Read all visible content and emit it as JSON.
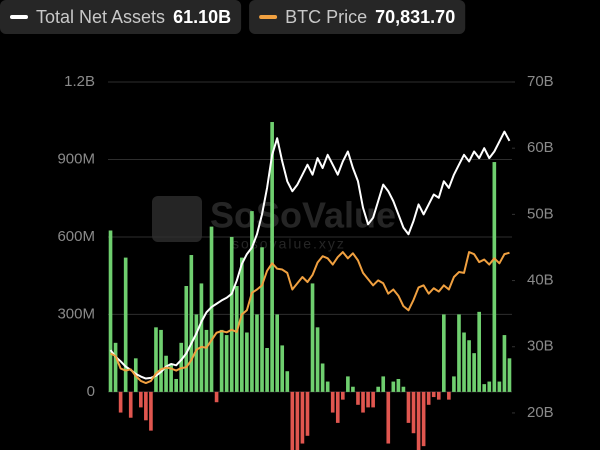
{
  "chart_data": {
    "type": "bar-line",
    "watermark": "SoSoValue",
    "watermark_sub": "sosovalue.xyz",
    "ylim": [
      -225,
      1200
    ],
    "yticks": [
      {
        "value": 1200,
        "label": "1.2B"
      },
      {
        "value": 900,
        "label": "900M"
      },
      {
        "value": 600,
        "label": "600M"
      },
      {
        "value": 300,
        "label": "300M"
      },
      0
    ],
    "y2lim": [
      14.4,
      70
    ],
    "y2ticks": [
      {
        "value": 70,
        "label": "70B"
      },
      {
        "value": 60,
        "label": "60B"
      },
      {
        "value": 50,
        "label": "50B"
      },
      {
        "value": 40,
        "label": "40B"
      },
      {
        "value": 30,
        "label": "30B"
      },
      {
        "value": 20,
        "label": "20B"
      }
    ],
    "y3lim": [
      23400,
      111900
    ],
    "grid": true,
    "series": [
      {
        "type": "bar",
        "color": "#6fcf6f",
        "negative_color": "#e0564f",
        "values": [
          625,
          190,
          -80,
          520,
          -100,
          130,
          -60,
          -110,
          -150,
          250,
          240,
          140,
          110,
          50,
          190,
          410,
          530,
          300,
          420,
          240,
          640,
          -40,
          240,
          220,
          600,
          410,
          520,
          230,
          700,
          300,
          560,
          170,
          1045,
          300,
          180,
          80,
          -300,
          -250,
          -200,
          -170,
          420,
          250,
          110,
          40,
          -80,
          -120,
          -30,
          60,
          20,
          -50,
          -80,
          -60,
          -60,
          20,
          60,
          -200,
          40,
          50,
          20,
          -120,
          -160,
          -250,
          -210,
          -50,
          -20,
          -30,
          300,
          -30,
          60,
          300,
          230,
          200,
          150,
          310,
          30,
          40,
          890,
          40,
          220,
          130
        ]
      },
      {
        "type": "line",
        "name": "Total Net Assets",
        "legend_value": "61.10B",
        "color": "#ffffff",
        "axis": "y2",
        "values": [
          29.5,
          28.5,
          27.8,
          27,
          26.5,
          25.9,
          25.5,
          25.2,
          25.3,
          25.6,
          26.2,
          27,
          27.4,
          27.2,
          28,
          29,
          30.5,
          32,
          33.8,
          35.2,
          36,
          36.5,
          37,
          37.4,
          38,
          40,
          42.5,
          44,
          45,
          47,
          50,
          54,
          59,
          61.5,
          58,
          55,
          53.5,
          54.5,
          56,
          57.5,
          56,
          58.5,
          57,
          59,
          57.5,
          56,
          58,
          59.5,
          57,
          55,
          51,
          48.5,
          49.5,
          52,
          54.5,
          53.5,
          52,
          50,
          48,
          47,
          49,
          51.5,
          50,
          51.5,
          53,
          52.5,
          55,
          54,
          56,
          57.5,
          59,
          58,
          59.5,
          58.5,
          60,
          58.5,
          59.5,
          61,
          62.5,
          61.1
        ]
      },
      {
        "type": "line",
        "name": "BTC Price",
        "legend_value": "70,831.70",
        "color": "#f0a040",
        "axis": "y3",
        "values": [
          46600,
          46000,
          43000,
          42500,
          42800,
          41200,
          40000,
          39500,
          40000,
          41800,
          42800,
          43200,
          43000,
          42500,
          43100,
          43300,
          45000,
          47500,
          48200,
          48000,
          49800,
          51600,
          52000,
          51700,
          52300,
          51800,
          56000,
          57000,
          61200,
          62000,
          63000,
          66500,
          68300,
          67000,
          66800,
          66000,
          62000,
          63500,
          65000,
          63800,
          65500,
          68500,
          70000,
          69500,
          68000,
          69800,
          71000,
          69500,
          70700,
          69000,
          66000,
          64500,
          63000,
          64200,
          63500,
          61000,
          62000,
          60500,
          58000,
          57000,
          59500,
          62500,
          63000,
          61000,
          62300,
          61500,
          63000,
          62000,
          65000,
          66200,
          66000,
          71000,
          70500,
          68600,
          69200,
          68000,
          69500,
          68300,
          70500,
          70831.7
        ]
      }
    ]
  }
}
